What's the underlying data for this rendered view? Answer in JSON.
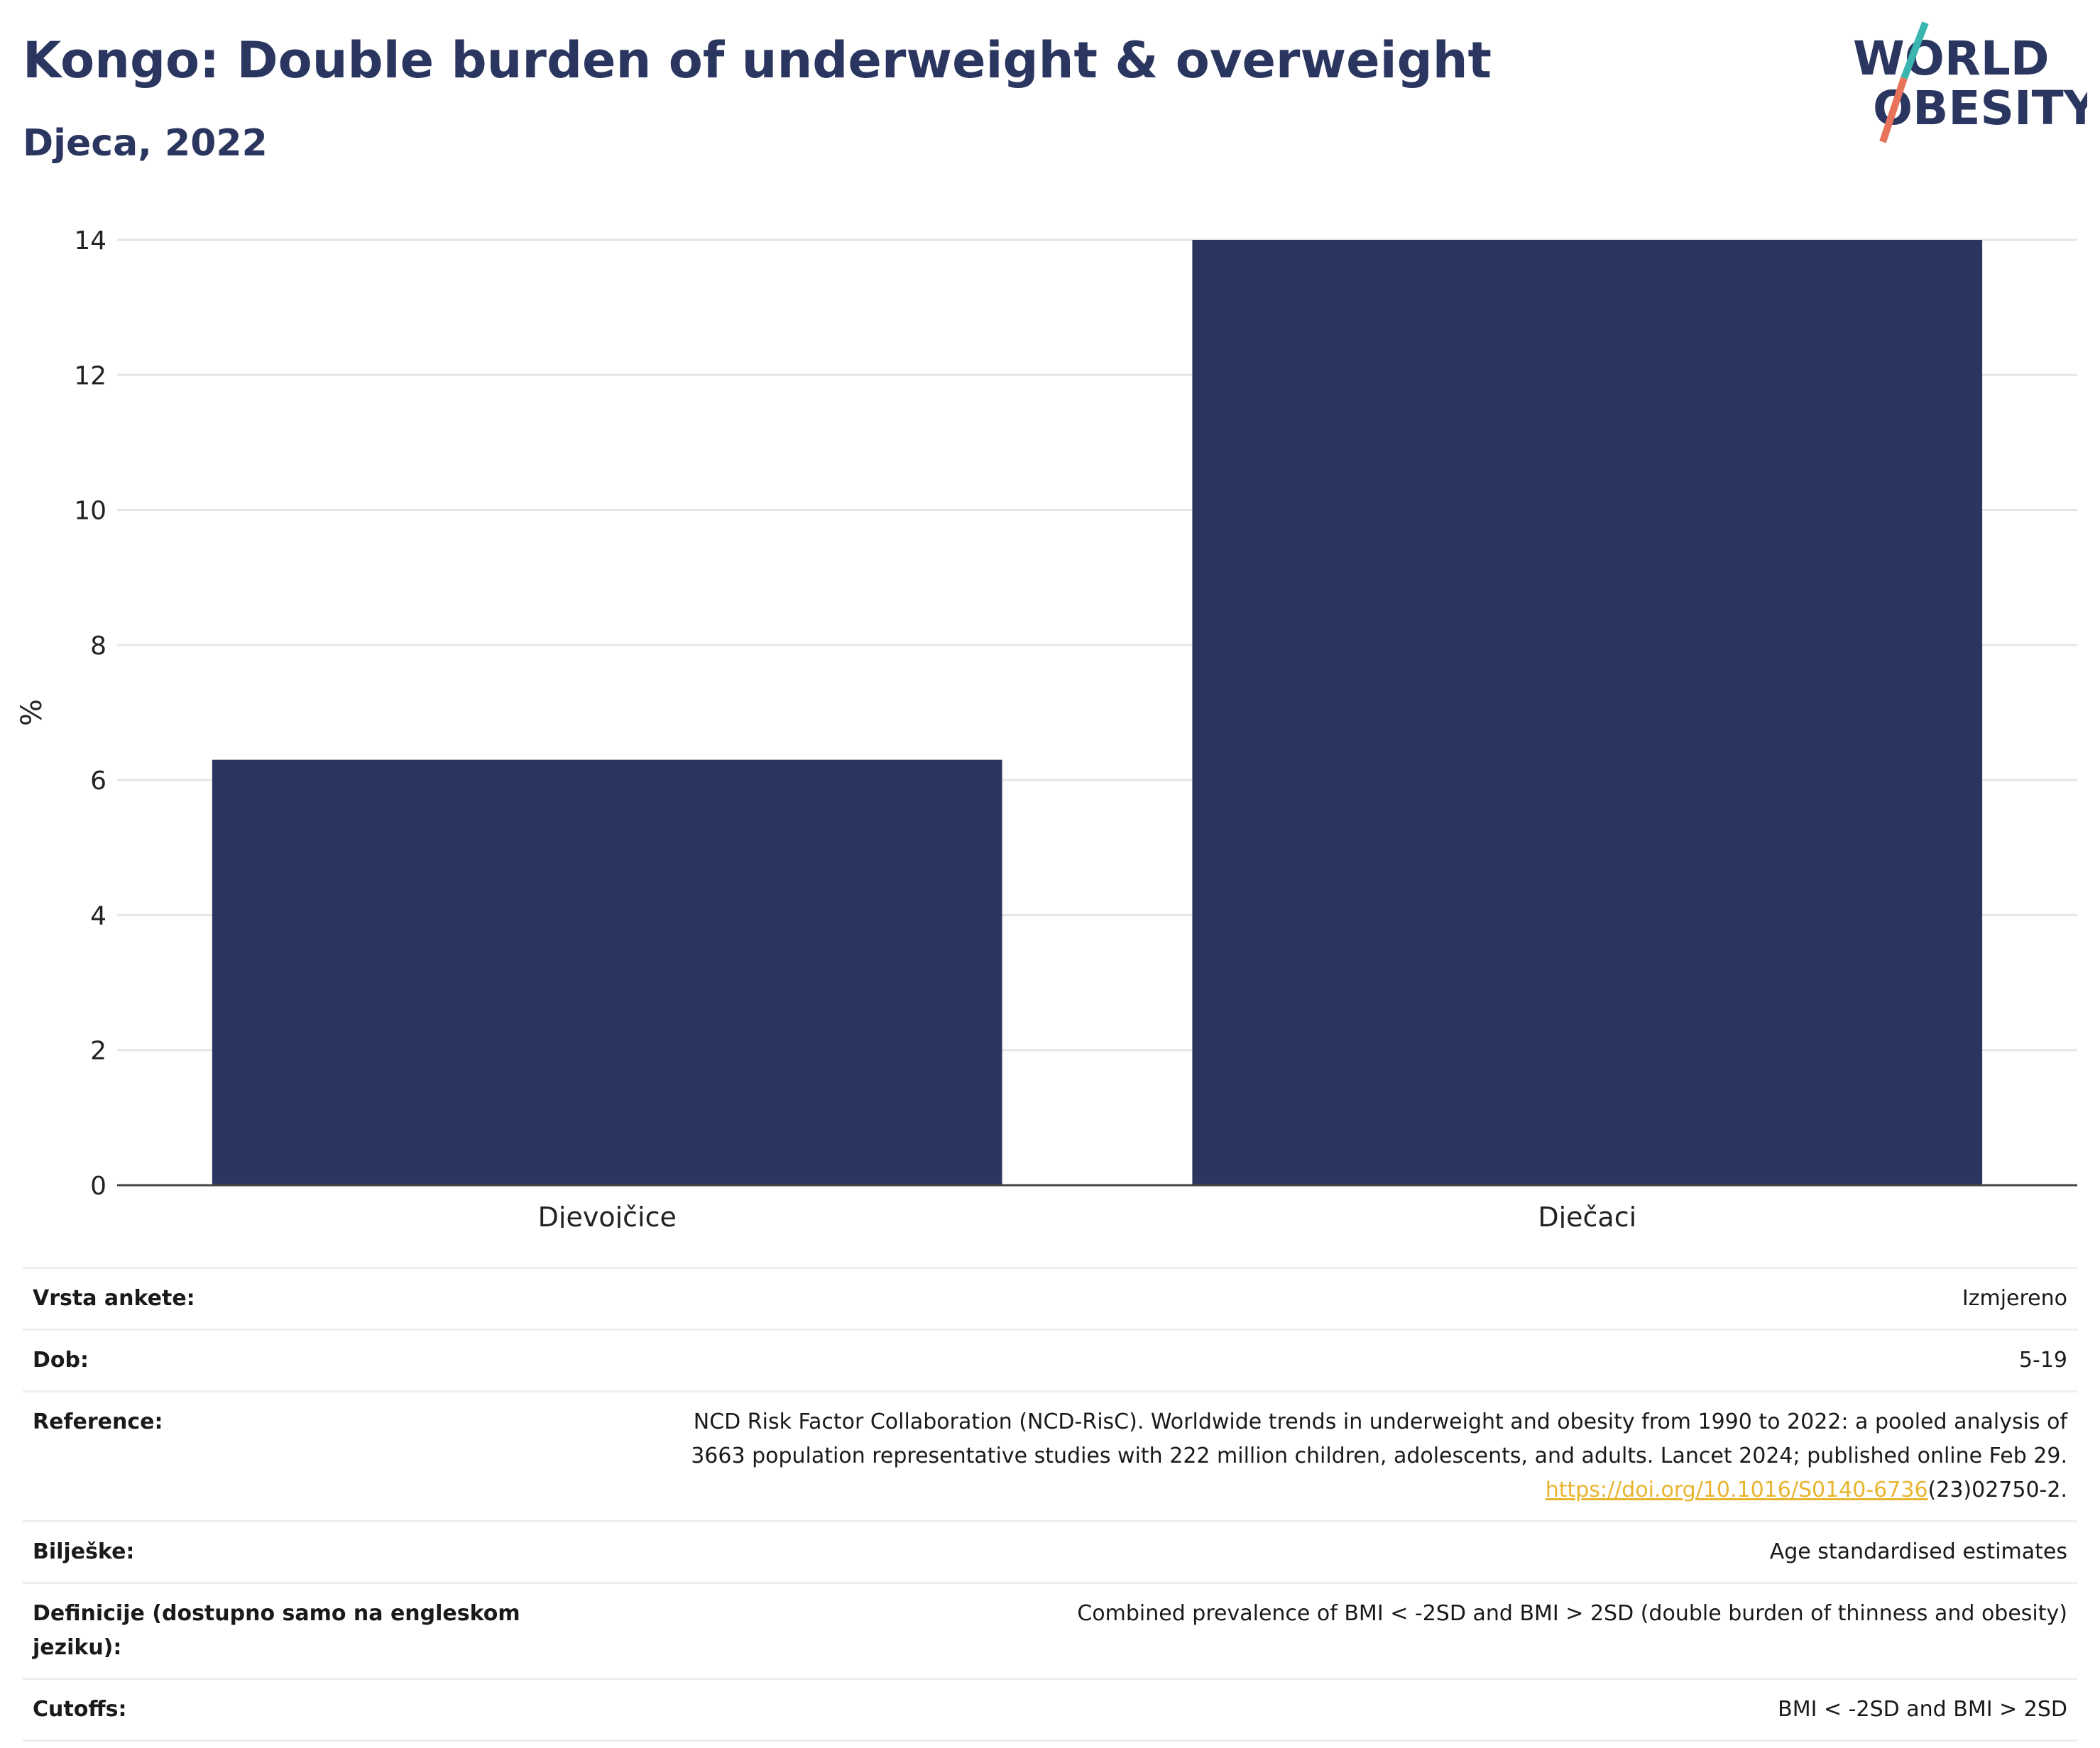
{
  "header": {
    "title": "Kongo: Double burden of underweight & overweight",
    "subtitle": "Djeca, 2022",
    "logo_line1": "WORLD",
    "logo_line2": "OBESITY"
  },
  "chart_data": {
    "type": "bar",
    "categories": [
      "Djevojčice",
      "Dječaci"
    ],
    "values": [
      6.3,
      14.0
    ],
    "ylabel": "%",
    "ylim": [
      0,
      14
    ],
    "yticks": [
      0,
      2,
      4,
      6,
      8,
      10,
      12,
      14
    ],
    "grid": true,
    "bar_color": "#2a365f"
  },
  "info": [
    {
      "key": "Vrsta ankete:",
      "value": "Izmjereno"
    },
    {
      "key": "Dob:",
      "value": "5-19"
    },
    {
      "key": "Reference:",
      "value_line1": "NCD Risk Factor Collaboration (NCD-RisC). Worldwide trends in underweight and obesity from 1990 to 2022: a pooled analysis of",
      "value_line2": "3663 population representative studies with 222 million children, adolescents, and adults. Lancet 2024; published online Feb 29.",
      "link": "https://doi.org/10.1016/S0140-6736",
      "link_tail": "(23)02750-2."
    },
    {
      "key": "Bilješke:",
      "value": "Age standardised estimates"
    },
    {
      "key": "Definicije (dostupno samo na engleskom jeziku):",
      "value": "Combined prevalence of BMI < -2SD and BMI > 2SD (double burden of thinness and obesity)"
    },
    {
      "key": "Cutoffs:",
      "value": "BMI < -2SD and BMI > 2SD"
    }
  ],
  "colors": {
    "brand": "#2a365f",
    "logo_slash_teal": "#3ab5b0",
    "logo_slash_coral": "#e8735a",
    "link": "#e8b530"
  }
}
